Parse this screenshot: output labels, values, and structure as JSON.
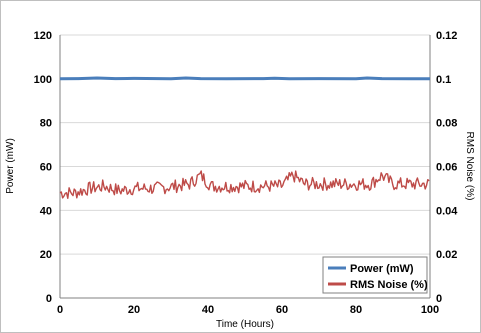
{
  "chart_data": {
    "type": "line",
    "xlabel": "Time (Hours)",
    "ylabel_left": "Power (mW)",
    "ylabel_right": "RMS Noise (%)",
    "x_ticks": [
      "0",
      "20",
      "40",
      "60",
      "80",
      "100"
    ],
    "y_left_ticks": [
      "0",
      "20",
      "40",
      "60",
      "80",
      "100",
      "120"
    ],
    "y_right_ticks": [
      "0",
      "0.02",
      "0.04",
      "0.06",
      "0.08",
      "0.1",
      "0.12"
    ],
    "xlim": [
      0,
      100
    ],
    "ylim_left": [
      0,
      120
    ],
    "ylim_right": [
      0,
      0.12
    ],
    "grid": "horizontal",
    "legend_position": "bottom-right",
    "series": [
      {
        "name": "Power (mW)",
        "axis": "left",
        "color": "#4a7ebb",
        "x": [
          0,
          5,
          10,
          15,
          20,
          30,
          34,
          38,
          45,
          55,
          58,
          62,
          70,
          80,
          83,
          87,
          95,
          100
        ],
        "y": [
          100,
          100.1,
          100.4,
          100.1,
          100.2,
          100,
          100.4,
          100.1,
          100,
          100.1,
          100.3,
          100,
          100.1,
          100,
          100.4,
          100.1,
          100,
          100
        ]
      },
      {
        "name": "RMS Noise (%)",
        "axis": "right",
        "color": "#be4b48",
        "x": [
          0,
          4,
          8,
          12,
          16,
          20,
          26,
          31,
          35,
          38,
          41,
          45,
          50,
          55,
          60,
          63,
          66,
          70,
          75,
          80,
          84,
          87,
          90,
          95,
          100
        ],
        "y": [
          0.048,
          0.048,
          0.05,
          0.051,
          0.049,
          0.05,
          0.05,
          0.051,
          0.052,
          0.056,
          0.051,
          0.051,
          0.051,
          0.051,
          0.051,
          0.056,
          0.052,
          0.052,
          0.052,
          0.052,
          0.052,
          0.056,
          0.052,
          0.052,
          0.052
        ]
      }
    ]
  }
}
